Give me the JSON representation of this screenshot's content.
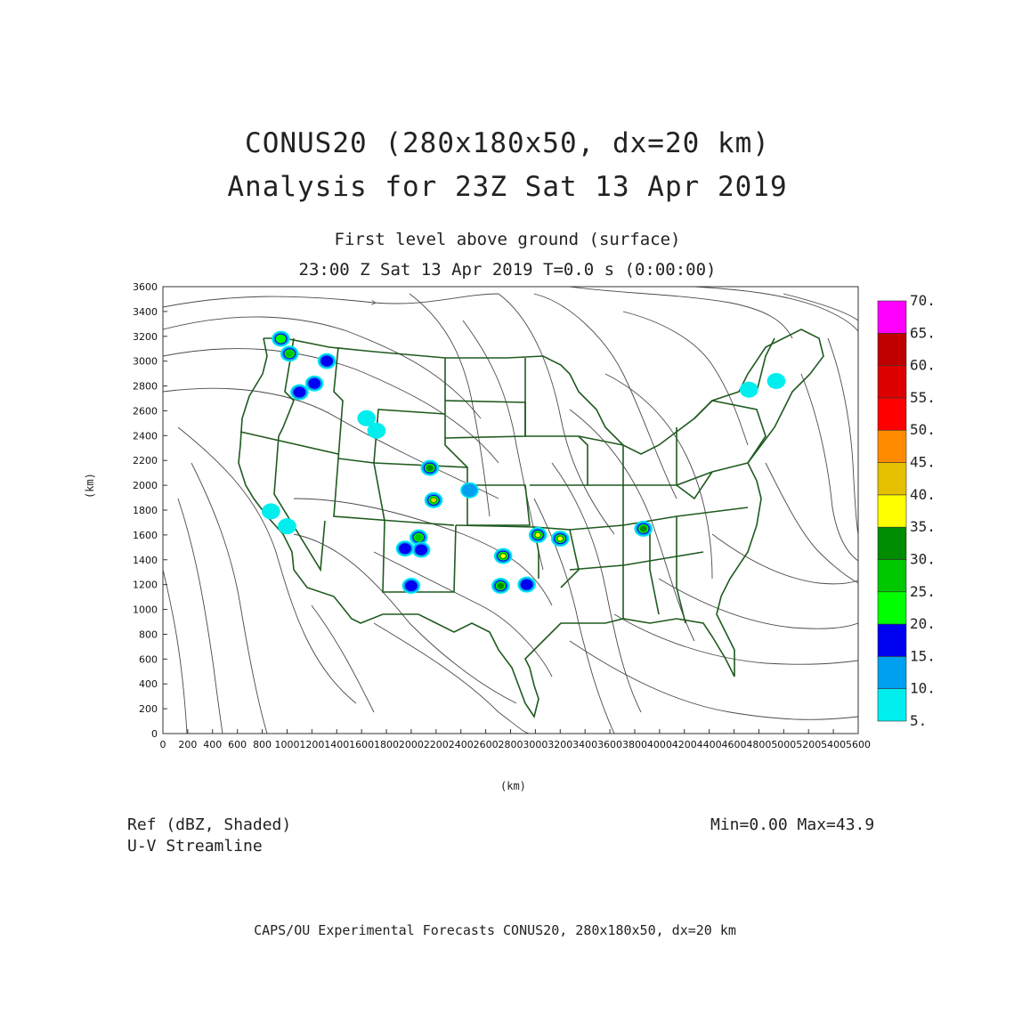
{
  "title": {
    "line1": "CONUS20 (280x180x50, dx=20 km)",
    "line2": "Analysis for 23Z Sat 13 Apr 2019"
  },
  "subtitle": {
    "level": "First level above ground (surface)",
    "time": "23:00 Z Sat 13 Apr 2019    T=0.0 s (0:00:00)"
  },
  "axes": {
    "xlabel": "(km)",
    "ylabel": "(km)",
    "x_range": [
      0,
      5600
    ],
    "y_range": [
      0,
      3600
    ],
    "x_ticks": [
      0,
      200,
      400,
      600,
      800,
      1000,
      1200,
      1400,
      1600,
      1800,
      2000,
      2200,
      2400,
      2600,
      2800,
      3000,
      3200,
      3400,
      3600,
      3800,
      4000,
      4200,
      4400,
      4600,
      4800,
      5000,
      5200,
      5400,
      5600
    ],
    "y_ticks": [
      0,
      200,
      400,
      600,
      800,
      1000,
      1200,
      1400,
      1600,
      1800,
      2000,
      2200,
      2400,
      2600,
      2800,
      3000,
      3200,
      3400,
      3600
    ]
  },
  "variables": {
    "shaded": "Ref (dBZ, Shaded)",
    "streamline": "U-V Streamline"
  },
  "stats": {
    "text": "Min=0.00 Max=43.9",
    "min": 0.0,
    "max": 43.9
  },
  "footer": "CAPS/OU Experimental Forecasts  CONUS20, 280x180x50, dx=20 km",
  "colorbar": {
    "labels": [
      "5.",
      "10.",
      "15.",
      "20.",
      "25.",
      "30.",
      "35.",
      "40.",
      "45.",
      "50.",
      "55.",
      "60.",
      "65.",
      "70."
    ],
    "colors": [
      "#00eeee",
      "#00a0f0",
      "#0000f0",
      "#00ff00",
      "#00c800",
      "#008c00",
      "#ffff00",
      "#e6c000",
      "#ff8c00",
      "#ff0000",
      "#dc0000",
      "#c00000",
      "#ff00ff"
    ]
  },
  "map_colors": {
    "boundary": "#1f5a1f",
    "streamline": "#444444"
  },
  "reflectivity_cells": [
    {
      "x": 950,
      "y": 3180,
      "max_dbz": 20
    },
    {
      "x": 1020,
      "y": 3060,
      "max_dbz": 25
    },
    {
      "x": 1320,
      "y": 3000,
      "max_dbz": 15
    },
    {
      "x": 1220,
      "y": 2820,
      "max_dbz": 15
    },
    {
      "x": 1100,
      "y": 2750,
      "max_dbz": 15
    },
    {
      "x": 1640,
      "y": 2540,
      "max_dbz": 5
    },
    {
      "x": 1720,
      "y": 2440,
      "max_dbz": 5
    },
    {
      "x": 2150,
      "y": 2140,
      "max_dbz": 30
    },
    {
      "x": 2180,
      "y": 1880,
      "max_dbz": 40
    },
    {
      "x": 2470,
      "y": 1960,
      "max_dbz": 10
    },
    {
      "x": 2060,
      "y": 1580,
      "max_dbz": 25
    },
    {
      "x": 2080,
      "y": 1480,
      "max_dbz": 15
    },
    {
      "x": 1950,
      "y": 1490,
      "max_dbz": 15
    },
    {
      "x": 2000,
      "y": 1190,
      "max_dbz": 15
    },
    {
      "x": 2740,
      "y": 1430,
      "max_dbz": 35
    },
    {
      "x": 2720,
      "y": 1190,
      "max_dbz": 30
    },
    {
      "x": 2930,
      "y": 1200,
      "max_dbz": 15
    },
    {
      "x": 3020,
      "y": 1600,
      "max_dbz": 35
    },
    {
      "x": 3200,
      "y": 1570,
      "max_dbz": 35
    },
    {
      "x": 3870,
      "y": 1650,
      "max_dbz": 30
    },
    {
      "x": 870,
      "y": 1790,
      "max_dbz": 5
    },
    {
      "x": 1000,
      "y": 1670,
      "max_dbz": 5
    },
    {
      "x": 4720,
      "y": 2770,
      "max_dbz": 5
    },
    {
      "x": 4940,
      "y": 2840,
      "max_dbz": 5
    }
  ]
}
